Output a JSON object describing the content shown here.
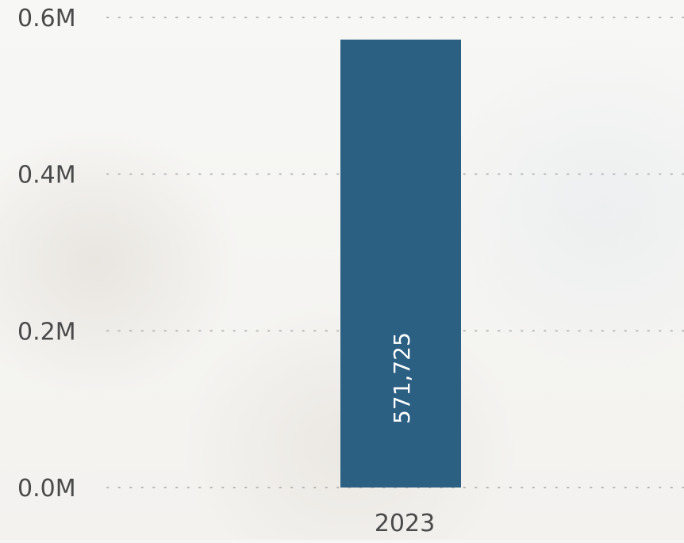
{
  "chart_data": {
    "type": "bar",
    "categories": [
      "2023"
    ],
    "values": [
      571725
    ],
    "data_labels": [
      "571,725"
    ],
    "yticks": [
      "0.0M",
      "0.2M",
      "0.4M",
      "0.6M"
    ],
    "ytick_values": [
      0,
      200000,
      400000,
      600000
    ],
    "ylim": [
      0,
      600000
    ],
    "grid": "dotted-horizontal",
    "colors": {
      "bar": "#2c6083",
      "axis_text": "#4a4a4a",
      "grid": "#b8b8b8",
      "data_label": "#ffffff"
    }
  }
}
